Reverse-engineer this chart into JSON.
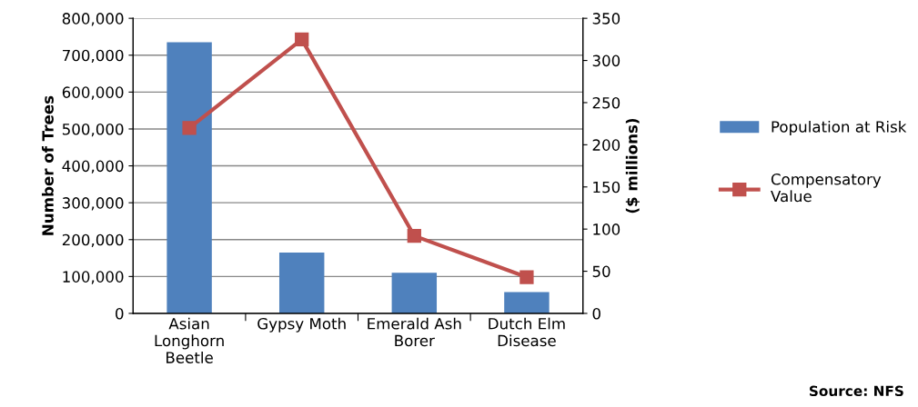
{
  "chart_data": {
    "type": "bar",
    "categories": [
      "Asian\nLonghorn\nBeetle",
      "Gypsy Moth",
      "Emerald Ash\nBorer",
      "Dutch Elm\nDisease"
    ],
    "series": [
      {
        "name": "Population at Risk",
        "color": "#4f81bd",
        "values": [
          735000,
          165000,
          110000,
          58000
        ]
      },
      {
        "name": "Compensatory\nValue",
        "type": "line",
        "axis": "y2",
        "color": "#c0504d",
        "marker": "square",
        "values": [
          220,
          325,
          92,
          43
        ]
      }
    ],
    "ylabel": "Number of Trees",
    "y2label": "($ millions)",
    "ylim": [
      0,
      800000
    ],
    "yticks": [
      {
        "value": 0,
        "label": "0"
      },
      {
        "value": 100000,
        "label": "100,000"
      },
      {
        "value": 200000,
        "label": "200,000"
      },
      {
        "value": 300000,
        "label": "300,000"
      },
      {
        "value": 400000,
        "label": "400,000"
      },
      {
        "value": 500000,
        "label": "500,000"
      },
      {
        "value": 600000,
        "label": "600,000"
      },
      {
        "value": 700000,
        "label": "700,000"
      },
      {
        "value": 800000,
        "label": "800,000"
      }
    ],
    "y2lim": [
      0,
      350
    ],
    "y2ticks": [
      0,
      50,
      100,
      150,
      200,
      250,
      300,
      350
    ],
    "grid": "y",
    "legend": "right",
    "annotations": [
      "Source: NFS"
    ]
  }
}
